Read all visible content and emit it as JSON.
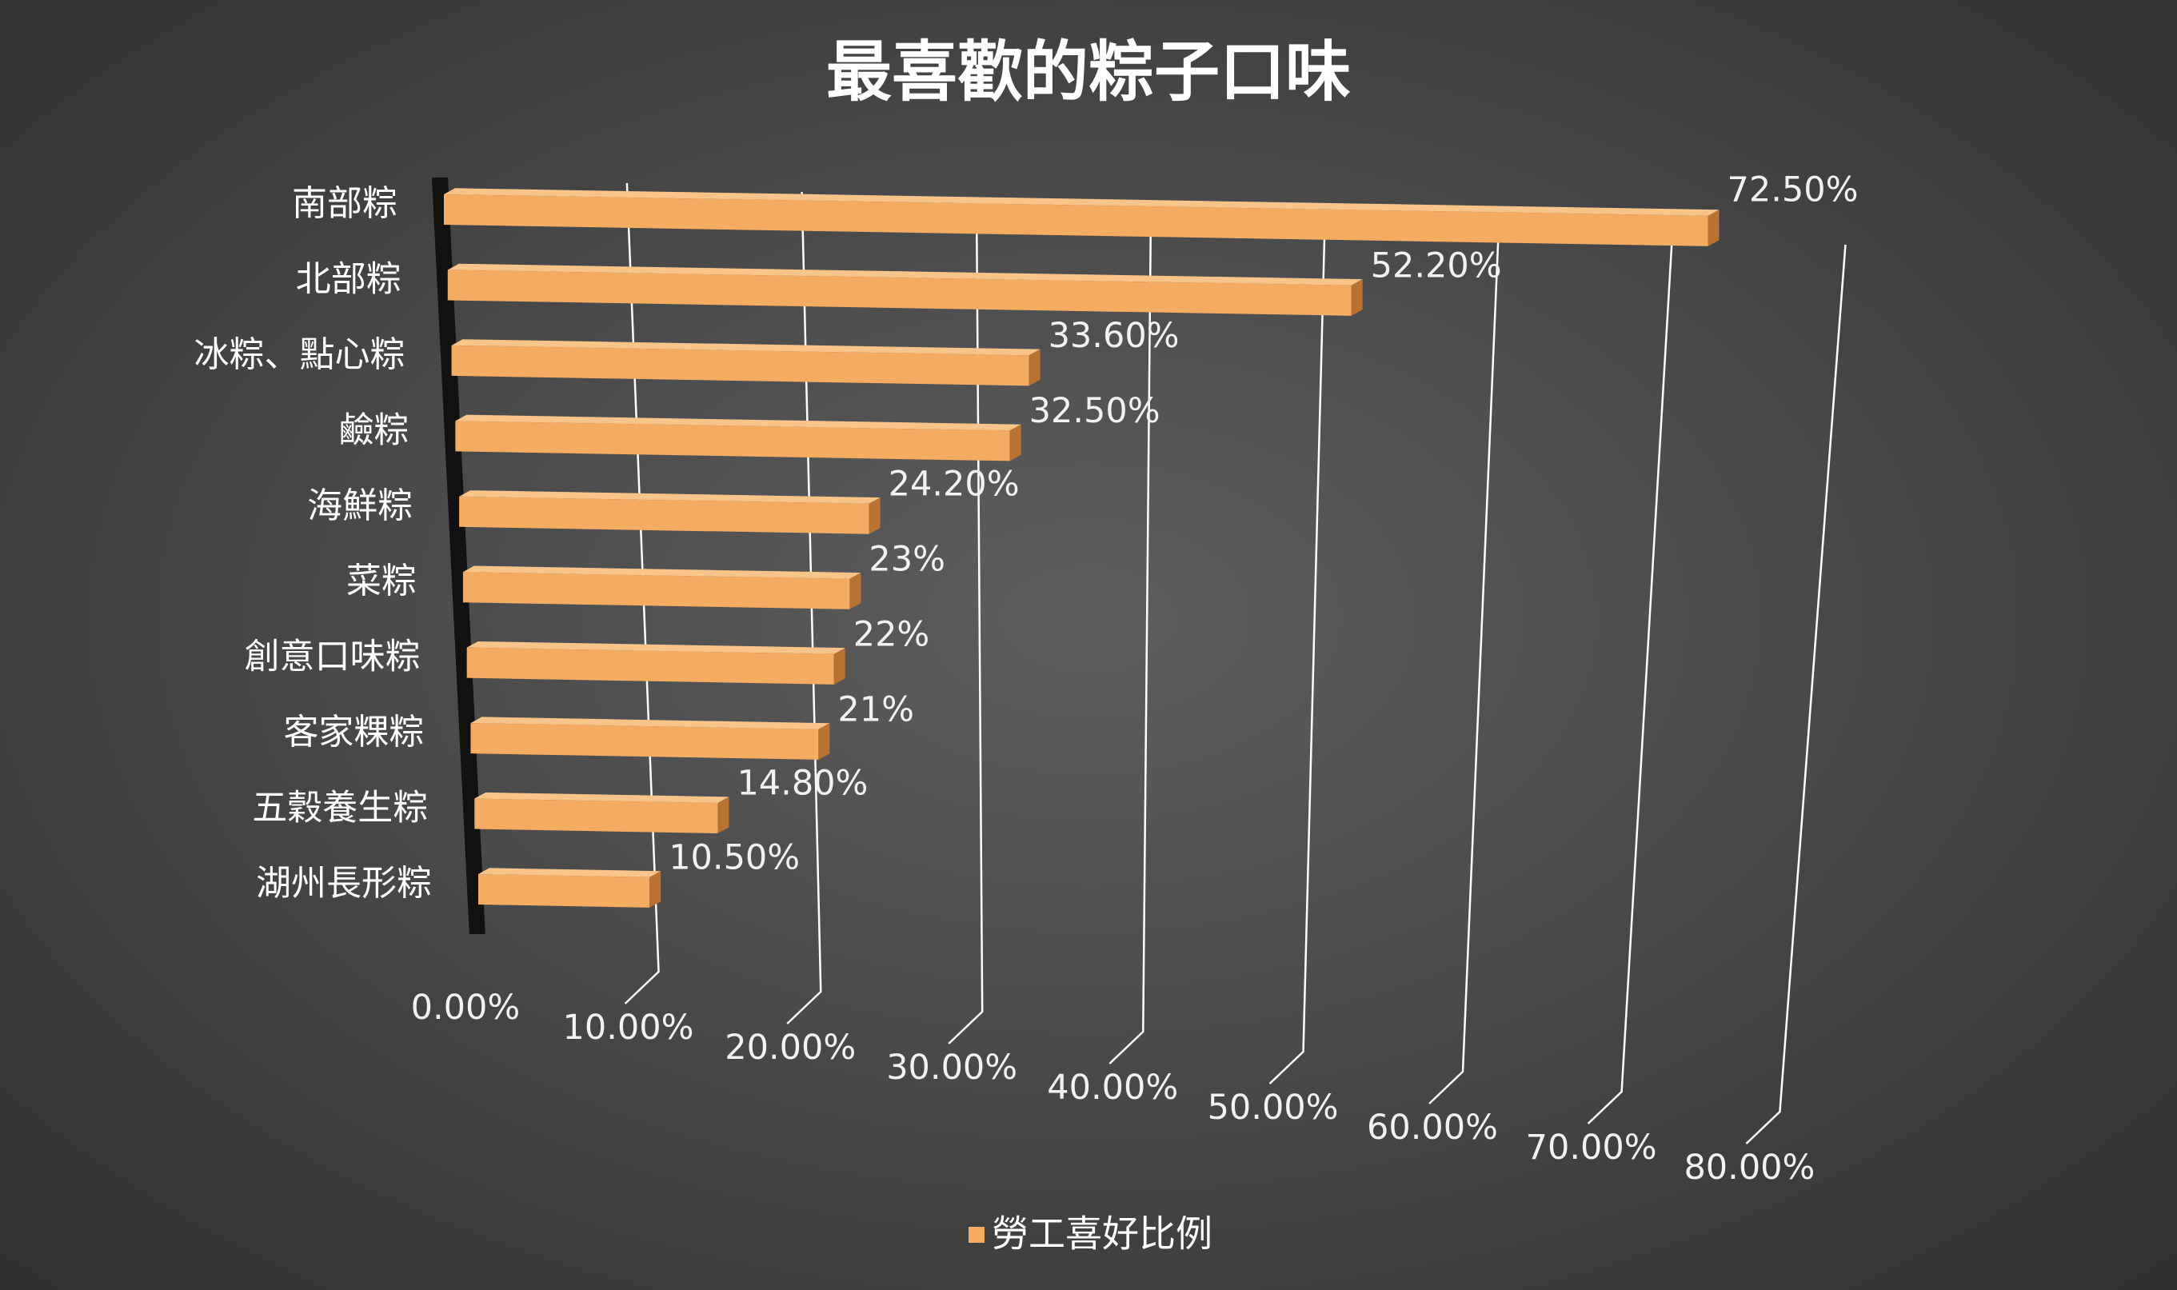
{
  "chart_data": {
    "type": "bar",
    "orientation": "horizontal",
    "style": "3d",
    "title": "最喜歡的粽子口味",
    "categories": [
      "南部粽",
      "北部粽",
      "冰粽、點心粽",
      "鹼粽",
      "海鮮粽",
      "菜粽",
      "創意口味粽",
      "客家粿粽",
      "五穀養生粽",
      "湖州長形粽"
    ],
    "series": [
      {
        "name": "勞工喜好比例",
        "values": [
          72.5,
          52.2,
          33.6,
          32.5,
          24.2,
          23,
          22,
          21,
          14.8,
          10.5
        ],
        "labels": [
          "72.50%",
          "52.20%",
          "33.60%",
          "32.50%",
          "24.20%",
          "23%",
          "22%",
          "21%",
          "14.80%",
          "10.50%"
        ]
      }
    ],
    "xlim": [
      0,
      80
    ],
    "ticks": [
      0,
      10,
      20,
      30,
      40,
      50,
      60,
      70,
      80
    ],
    "tick_labels": [
      "0.00%",
      "10.00%",
      "20.00%",
      "30.00%",
      "40.00%",
      "50.00%",
      "60.00%",
      "70.00%",
      "80.00%"
    ],
    "grid": true,
    "legend": "bottom",
    "colors": {
      "bar_front": "#f4ac63",
      "bar_top": "#f9c48a",
      "bar_side": "#b87333",
      "gridline": "#ffffff",
      "wall": "#111111"
    }
  }
}
